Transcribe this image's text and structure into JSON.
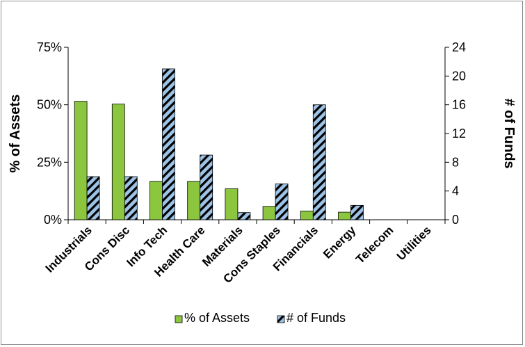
{
  "chart_data": {
    "type": "bar",
    "categories": [
      "Industrials",
      "Cons Disc",
      "Info Tech",
      "Health Care",
      "Materials",
      "Cons Staples",
      "Financials",
      "Energy",
      "Telecom",
      "Utilities"
    ],
    "series": [
      {
        "name": "% of Assets",
        "axis": "left",
        "color": "#8cc63f",
        "pattern": "solid",
        "values": [
          51.5,
          50.3,
          16.7,
          16.7,
          13.5,
          5.8,
          3.8,
          3.3,
          0,
          0
        ]
      },
      {
        "name": "# of Funds",
        "axis": "right",
        "color": "#9dc3e6",
        "pattern": "diagonal-stripes-black",
        "values": [
          6,
          6,
          21,
          9,
          1,
          5,
          16,
          2,
          0,
          0
        ]
      }
    ],
    "ylabel": "% of Assets",
    "y2label": "# of Funds",
    "ylim": [
      0,
      75
    ],
    "y2lim": [
      0,
      24
    ],
    "yticks": [
      "0%",
      "25%",
      "50%",
      "75%"
    ],
    "y2ticks": [
      "0",
      "4",
      "8",
      "12",
      "16",
      "20",
      "24"
    ],
    "legend_position": "bottom",
    "grid": false
  }
}
